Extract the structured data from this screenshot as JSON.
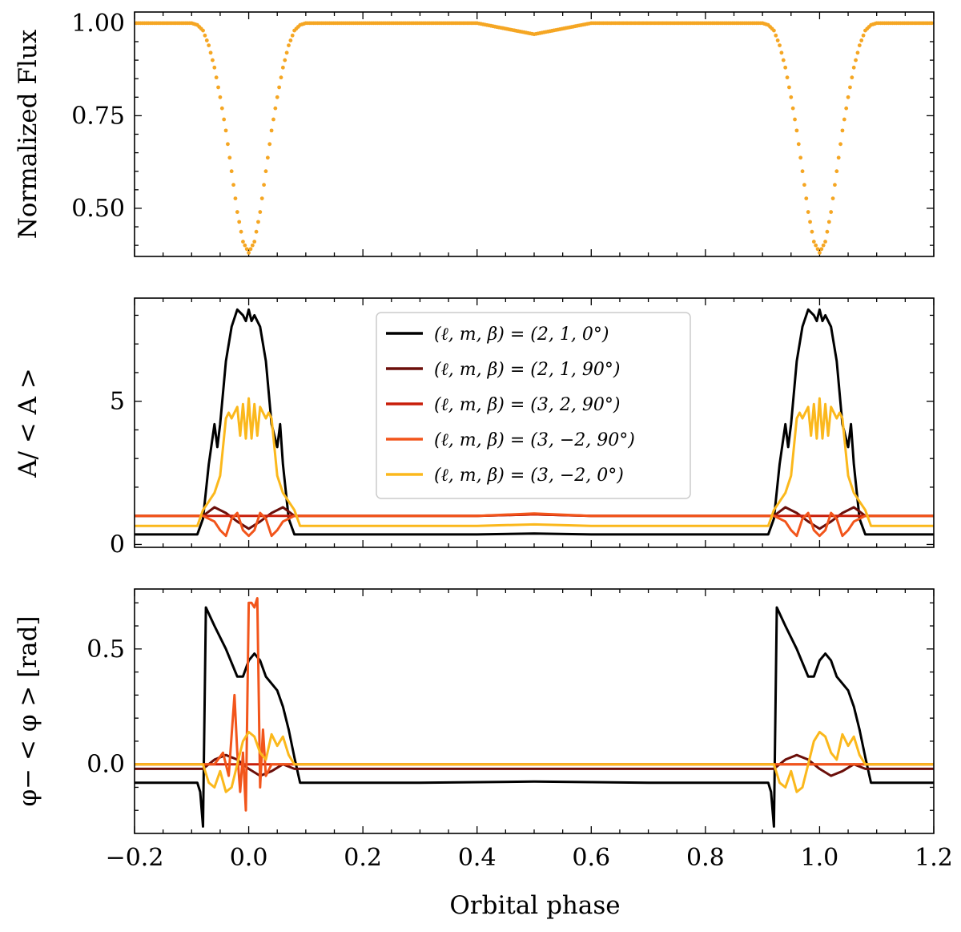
{
  "chart_data": [
    {
      "type": "scatter",
      "title": "",
      "xlabel": "",
      "ylabel": "Normalized Flux",
      "xlim": [
        -0.2,
        1.2
      ],
      "ylim": [
        0.37,
        1.03
      ],
      "yticks": [
        0.5,
        0.75,
        1.0
      ],
      "ytick_labels": [
        "0.50",
        "0.75",
        "1.00"
      ],
      "grid": false,
      "series": [
        {
          "name": "Normalized flux",
          "color": "#f5a623",
          "x": [
            -0.2,
            -0.1,
            -0.09,
            -0.08,
            -0.07,
            -0.06,
            -0.05,
            -0.04,
            -0.03,
            -0.02,
            -0.01,
            0.0,
            0.01,
            0.02,
            0.03,
            0.04,
            0.05,
            0.06,
            0.07,
            0.08,
            0.09,
            0.1,
            0.4,
            0.5,
            0.6,
            0.9,
            0.91,
            0.92,
            0.93,
            0.94,
            0.95,
            0.96,
            0.97,
            0.98,
            0.99,
            1.0,
            1.01,
            1.02,
            1.03,
            1.04,
            1.05,
            1.06,
            1.07,
            1.08,
            1.09,
            1.1,
            1.2
          ],
          "y": [
            1.0,
            1.0,
            0.995,
            0.98,
            0.94,
            0.88,
            0.8,
            0.71,
            0.6,
            0.49,
            0.41,
            0.38,
            0.41,
            0.49,
            0.6,
            0.71,
            0.8,
            0.88,
            0.94,
            0.98,
            0.995,
            1.0,
            1.0,
            0.97,
            1.0,
            1.0,
            0.995,
            0.98,
            0.94,
            0.88,
            0.8,
            0.71,
            0.6,
            0.49,
            0.41,
            0.38,
            0.41,
            0.49,
            0.6,
            0.71,
            0.8,
            0.88,
            0.94,
            0.98,
            0.995,
            1.0,
            1.0
          ]
        }
      ]
    },
    {
      "type": "line",
      "title": "",
      "xlabel": "",
      "ylabel": "A/ < A >",
      "xlim": [
        -0.2,
        1.2
      ],
      "ylim": [
        -0.1,
        8.6
      ],
      "yticks": [
        0,
        5
      ],
      "ytick_labels": [
        "0",
        "5"
      ],
      "grid": false,
      "legend_position": "top-center",
      "series": [
        {
          "name": "(ℓ, m, β) = (2, 1, 0°)",
          "color": "#000000",
          "x": [
            -0.2,
            -0.09,
            -0.08,
            -0.07,
            -0.06,
            -0.055,
            -0.05,
            -0.04,
            -0.03,
            -0.02,
            -0.01,
            -0.005,
            0.0,
            0.005,
            0.01,
            0.02,
            0.03,
            0.04,
            0.05,
            0.055,
            0.06,
            0.07,
            0.08,
            0.09,
            0.4,
            0.5,
            0.6,
            0.91,
            0.92,
            0.93,
            0.94,
            0.945,
            0.95,
            0.96,
            0.97,
            0.98,
            0.99,
            0.995,
            1.0,
            1.005,
            1.01,
            1.02,
            1.03,
            1.04,
            1.05,
            1.055,
            1.06,
            1.07,
            1.08,
            1.09,
            1.2
          ],
          "y": [
            0.35,
            0.35,
            0.9,
            2.8,
            4.2,
            3.4,
            4.2,
            6.4,
            7.6,
            8.2,
            8.0,
            7.8,
            8.2,
            7.8,
            8.0,
            7.6,
            6.4,
            4.2,
            3.4,
            4.2,
            2.8,
            0.9,
            0.35,
            0.35,
            0.35,
            0.38,
            0.35,
            0.35,
            0.9,
            2.8,
            4.2,
            3.4,
            4.2,
            6.4,
            7.6,
            8.2,
            8.0,
            7.8,
            8.2,
            7.8,
            8.0,
            7.6,
            6.4,
            4.2,
            3.4,
            4.2,
            2.8,
            0.9,
            0.35,
            0.35,
            0.35
          ]
        },
        {
          "name": "(ℓ, m, β) = (2, 1, 90°)",
          "color": "#6b0f0a",
          "x": [
            -0.2,
            -0.08,
            -0.06,
            -0.04,
            -0.02,
            0.0,
            0.02,
            0.04,
            0.06,
            0.08,
            0.4,
            0.5,
            0.6,
            0.92,
            0.94,
            0.96,
            0.98,
            1.0,
            1.02,
            1.04,
            1.06,
            1.08,
            1.2
          ],
          "y": [
            1.0,
            1.0,
            1.3,
            1.1,
            0.8,
            0.55,
            0.8,
            1.1,
            1.3,
            1.0,
            1.0,
            1.05,
            1.0,
            1.0,
            1.3,
            1.1,
            0.8,
            0.55,
            0.8,
            1.1,
            1.3,
            1.0,
            1.0
          ]
        },
        {
          "name": "(ℓ, m, β) = (3, 2, 90°)",
          "color": "#c81e0a",
          "x": [
            -0.2,
            0.4,
            0.5,
            0.6,
            1.2
          ],
          "y": [
            1.0,
            1.0,
            1.05,
            1.0,
            1.0
          ]
        },
        {
          "name": "(ℓ, m, β) = (3, −2, 90°)",
          "color": "#f2551b",
          "x": [
            -0.2,
            -0.08,
            -0.06,
            -0.05,
            -0.04,
            -0.03,
            -0.02,
            -0.01,
            0.0,
            0.01,
            0.02,
            0.03,
            0.04,
            0.05,
            0.06,
            0.08,
            0.4,
            0.5,
            0.6,
            0.92,
            0.94,
            0.95,
            0.96,
            0.97,
            0.98,
            0.99,
            1.0,
            1.01,
            1.02,
            1.03,
            1.04,
            1.05,
            1.06,
            1.08,
            1.2
          ],
          "y": [
            1.0,
            1.0,
            0.8,
            0.5,
            0.3,
            0.9,
            1.1,
            0.5,
            0.3,
            0.5,
            1.1,
            0.9,
            0.3,
            0.5,
            0.8,
            1.0,
            1.0,
            1.08,
            1.0,
            1.0,
            0.8,
            0.5,
            0.3,
            0.9,
            1.1,
            0.5,
            0.3,
            0.5,
            1.1,
            0.9,
            0.3,
            0.5,
            0.8,
            1.0,
            1.0
          ]
        },
        {
          "name": "(ℓ, m, β) = (3, −2, 0°)",
          "color": "#fbb81c",
          "x": [
            -0.2,
            -0.09,
            -0.08,
            -0.07,
            -0.06,
            -0.05,
            -0.04,
            -0.035,
            -0.03,
            -0.02,
            -0.015,
            -0.01,
            -0.005,
            0.0,
            0.005,
            0.01,
            0.015,
            0.02,
            0.03,
            0.035,
            0.04,
            0.05,
            0.06,
            0.07,
            0.08,
            0.09,
            0.4,
            0.5,
            0.6,
            0.91,
            0.92,
            0.93,
            0.94,
            0.95,
            0.96,
            0.965,
            0.97,
            0.98,
            0.985,
            0.99,
            0.995,
            1.0,
            1.005,
            1.01,
            1.015,
            1.02,
            1.03,
            1.035,
            1.04,
            1.05,
            1.06,
            1.07,
            1.08,
            1.09,
            1.2
          ],
          "y": [
            0.65,
            0.65,
            1.2,
            1.5,
            1.8,
            2.4,
            4.4,
            4.6,
            4.4,
            4.8,
            3.8,
            4.9,
            3.7,
            5.1,
            3.7,
            4.9,
            3.8,
            4.8,
            4.4,
            4.6,
            4.4,
            2.4,
            1.8,
            1.5,
            1.2,
            0.65,
            0.65,
            0.7,
            0.65,
            0.65,
            1.2,
            1.5,
            1.8,
            2.4,
            4.4,
            4.6,
            4.4,
            4.8,
            3.8,
            4.9,
            3.7,
            5.1,
            3.7,
            4.9,
            3.8,
            4.8,
            4.4,
            4.6,
            4.4,
            2.4,
            1.8,
            1.5,
            1.2,
            0.65,
            0.65
          ]
        }
      ]
    },
    {
      "type": "line",
      "title": "",
      "xlabel": "Orbital phase",
      "ylabel": "φ− < φ > [rad]",
      "xlim": [
        -0.2,
        1.2
      ],
      "ylim": [
        -0.3,
        0.76
      ],
      "yticks": [
        0.0,
        0.5
      ],
      "ytick_labels": [
        "0.0",
        "0.5"
      ],
      "xticks": [
        -0.2,
        0.0,
        0.2,
        0.4,
        0.6,
        0.8,
        1.0,
        1.2
      ],
      "xtick_labels": [
        "−0.2",
        "0.0",
        "0.2",
        "0.4",
        "0.6",
        "0.8",
        "1.0",
        "1.2"
      ],
      "grid": false,
      "series": [
        {
          "name": "(ℓ, m, β) = (2, 1, 0°)",
          "color": "#000000",
          "x": [
            -0.2,
            -0.09,
            -0.085,
            -0.08,
            -0.075,
            -0.06,
            -0.04,
            -0.02,
            -0.01,
            0.0,
            0.01,
            0.02,
            0.03,
            0.05,
            0.06,
            0.07,
            0.08,
            0.09,
            0.3,
            0.5,
            0.7,
            0.91,
            0.915,
            0.92,
            0.925,
            0.94,
            0.96,
            0.98,
            0.99,
            1.0,
            1.01,
            1.02,
            1.03,
            1.05,
            1.06,
            1.07,
            1.08,
            1.09,
            1.2
          ],
          "y": [
            -0.08,
            -0.08,
            -0.12,
            -0.27,
            0.68,
            0.6,
            0.5,
            0.38,
            0.38,
            0.45,
            0.48,
            0.45,
            0.38,
            0.32,
            0.25,
            0.15,
            0.03,
            -0.08,
            -0.08,
            -0.075,
            -0.08,
            -0.08,
            -0.12,
            -0.27,
            0.68,
            0.6,
            0.5,
            0.38,
            0.38,
            0.45,
            0.48,
            0.45,
            0.38,
            0.32,
            0.25,
            0.15,
            0.03,
            -0.08,
            -0.08
          ]
        },
        {
          "name": "(ℓ, m, β) = (2, 1, 90°)",
          "color": "#6b0f0a",
          "x": [
            -0.2,
            -0.08,
            -0.06,
            -0.04,
            -0.02,
            0.0,
            0.02,
            0.04,
            0.06,
            0.08,
            0.5,
            0.92,
            0.94,
            0.96,
            0.98,
            1.0,
            1.02,
            1.04,
            1.06,
            1.08,
            1.2
          ],
          "y": [
            -0.02,
            -0.02,
            0.02,
            0.04,
            0.02,
            -0.02,
            -0.05,
            -0.03,
            0.0,
            -0.02,
            -0.02,
            -0.02,
            0.02,
            0.04,
            0.02,
            -0.02,
            -0.05,
            -0.03,
            0.0,
            -0.02,
            -0.02
          ]
        },
        {
          "name": "(ℓ, m, β) = (3, 2, 90°)",
          "color": "#c81e0a",
          "x": [
            -0.2,
            0.5,
            1.2
          ],
          "y": [
            0.0,
            0.0,
            0.0
          ]
        },
        {
          "name": "(ℓ, m, β) = (3, −2, 90°)",
          "color": "#f2551b",
          "x": [
            -0.2,
            -0.06,
            -0.045,
            -0.035,
            -0.025,
            -0.02,
            -0.015,
            -0.01,
            -0.005,
            0.0,
            0.005,
            0.01,
            0.015,
            0.02,
            0.025,
            0.03,
            0.04,
            0.06,
            1.2
          ],
          "y": [
            0.0,
            0.0,
            0.05,
            -0.05,
            0.3,
            0.05,
            -0.12,
            0.05,
            -0.2,
            0.7,
            0.7,
            0.68,
            0.72,
            -0.1,
            0.15,
            -0.05,
            0.0,
            0.0,
            0.0
          ]
        },
        {
          "name": "(ℓ, m, β) = (3, −2, 0°)",
          "color": "#fbb81c",
          "x": [
            -0.2,
            -0.08,
            -0.07,
            -0.06,
            -0.05,
            -0.04,
            -0.03,
            -0.02,
            -0.01,
            0.0,
            0.01,
            0.02,
            0.03,
            0.04,
            0.05,
            0.06,
            0.07,
            0.08,
            0.09,
            0.5,
            0.91,
            0.92,
            0.93,
            0.94,
            0.95,
            0.96,
            0.97,
            0.98,
            0.99,
            1.0,
            1.01,
            1.02,
            1.03,
            1.04,
            1.05,
            1.06,
            1.07,
            1.08,
            1.09,
            1.2
          ],
          "y": [
            0.0,
            0.0,
            -0.08,
            -0.1,
            -0.03,
            -0.12,
            -0.1,
            0.0,
            0.1,
            0.14,
            0.12,
            0.05,
            0.02,
            0.13,
            0.08,
            0.12,
            0.04,
            0.0,
            0.0,
            0.0,
            0.0,
            0.0,
            -0.08,
            -0.1,
            -0.03,
            -0.12,
            -0.1,
            0.0,
            0.1,
            0.14,
            0.12,
            0.05,
            0.02,
            0.13,
            0.08,
            0.12,
            0.04,
            0.0,
            0.0,
            0.0
          ]
        }
      ]
    }
  ]
}
